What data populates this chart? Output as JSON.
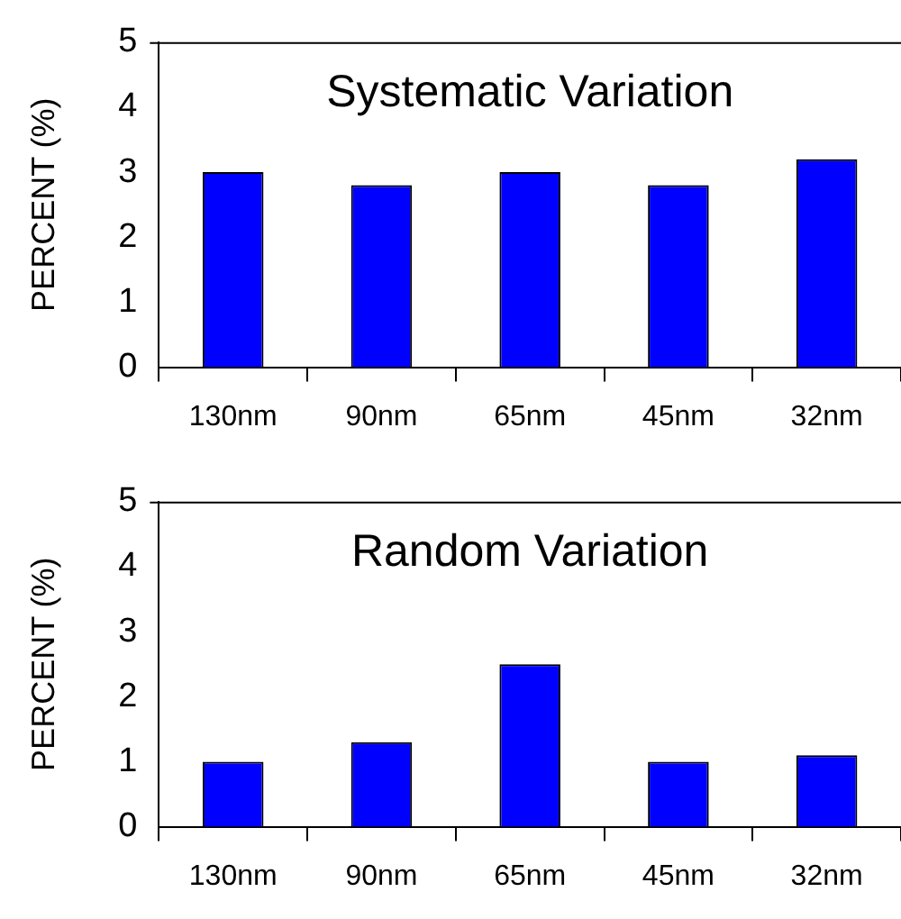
{
  "chart_data": [
    {
      "type": "bar",
      "title": "Systematic Variation",
      "ylabel": "PERCENT (%)",
      "categories": [
        "130nm",
        "90nm",
        "65nm",
        "45nm",
        "32nm"
      ],
      "values": [
        3.0,
        2.8,
        3.0,
        2.8,
        3.2
      ],
      "color": "#0000ff",
      "ylim": [
        0,
        5
      ],
      "yticks": [
        0,
        1,
        2,
        3,
        4,
        5
      ]
    },
    {
      "type": "bar",
      "title": "Random Variation",
      "ylabel": "PERCENT (%)",
      "categories": [
        "130nm",
        "90nm",
        "65nm",
        "45nm",
        "32nm"
      ],
      "values": [
        1.0,
        1.3,
        2.5,
        1.0,
        1.1
      ],
      "color": "#0000ff",
      "ylim": [
        0,
        5
      ],
      "yticks": [
        0,
        1,
        2,
        3,
        4,
        5
      ]
    }
  ]
}
